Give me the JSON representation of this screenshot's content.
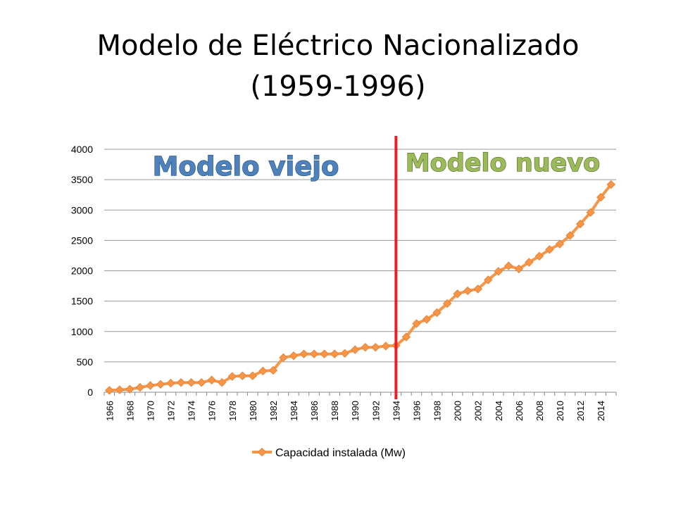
{
  "slide": {
    "title_line1": "Modelo de Eléctrico Nacionalizado",
    "title_line2": "(1959-1996)"
  },
  "annotations": {
    "old_model": "Modelo viejo",
    "new_model": "Modelo nuevo",
    "divider_year": 1994
  },
  "colors": {
    "series": "#f79646",
    "series_stroke": "#e8833a",
    "divider": "#e8202a",
    "old_model_fill": "#4f81bd",
    "new_model_fill": "#9bbb59",
    "gridline": "#9a9a9a"
  },
  "chart_data": {
    "type": "line",
    "xlabel": "",
    "ylabel": "",
    "ylim": [
      0,
      4000
    ],
    "yticks": [
      0,
      500,
      1000,
      1500,
      2000,
      2500,
      3000,
      3500,
      4000
    ],
    "xtick_labels": [
      "1966",
      "1968",
      "1970",
      "1972",
      "1974",
      "1976",
      "1978",
      "1980",
      "1982",
      "1984",
      "1986",
      "1988",
      "1990",
      "1992",
      "1994",
      "1996",
      "1998",
      "2000",
      "2002",
      "2004",
      "2006",
      "2008",
      "2010",
      "2012",
      "2014"
    ],
    "grid": true,
    "legend": "bottom",
    "x": [
      1966,
      1967,
      1968,
      1969,
      1970,
      1971,
      1972,
      1973,
      1974,
      1975,
      1976,
      1977,
      1978,
      1979,
      1980,
      1981,
      1982,
      1983,
      1984,
      1985,
      1986,
      1987,
      1988,
      1989,
      1990,
      1991,
      1992,
      1993,
      1994,
      1995,
      1996,
      1997,
      1998,
      1999,
      2000,
      2001,
      2002,
      2003,
      2004,
      2005,
      2006,
      2007,
      2008,
      2009,
      2010,
      2011,
      2012,
      2013,
      2014,
      2015
    ],
    "series": [
      {
        "name": "Capacidad instalada (Mw)",
        "values": [
          30,
          40,
          50,
          80,
          110,
          130,
          150,
          160,
          160,
          160,
          200,
          160,
          260,
          270,
          270,
          350,
          360,
          570,
          600,
          630,
          630,
          630,
          630,
          640,
          700,
          740,
          740,
          760,
          770,
          910,
          1130,
          1200,
          1310,
          1460,
          1620,
          1670,
          1700,
          1850,
          1990,
          2080,
          2030,
          2140,
          2240,
          2350,
          2440,
          2580,
          2770,
          2960,
          3210,
          3420
        ]
      }
    ]
  }
}
